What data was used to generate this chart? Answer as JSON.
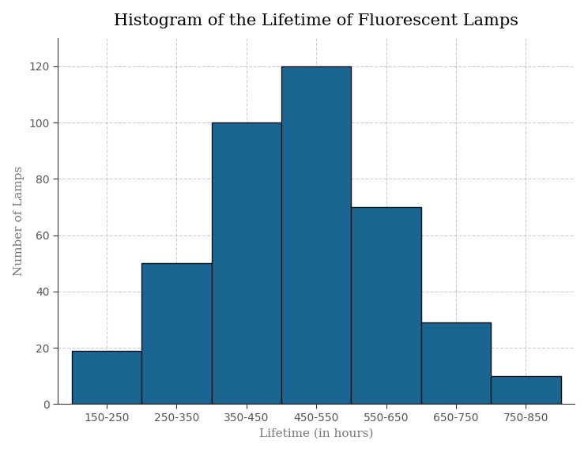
{
  "title": "Histogram of the Lifetime of Fluorescent Lamps",
  "xlabel": "Lifetime (in hours)",
  "ylabel": "Number of Lamps",
  "categories": [
    "150-250",
    "250-350",
    "350-450",
    "450-550",
    "550-650",
    "650-750",
    "750-850"
  ],
  "values": [
    19,
    50,
    100,
    120,
    70,
    29,
    10
  ],
  "bar_color": "#1a6591",
  "bar_edge_color": "#111111",
  "bar_edge_width": 1.0,
  "ylim": [
    0,
    130
  ],
  "yticks": [
    0,
    20,
    40,
    60,
    80,
    100,
    120
  ],
  "title_fontsize": 15,
  "label_fontsize": 11,
  "tick_fontsize": 10,
  "background_color": "#ffffff",
  "grid_color": "#aaaaaa",
  "grid_linestyle": "--",
  "grid_alpha": 0.6
}
